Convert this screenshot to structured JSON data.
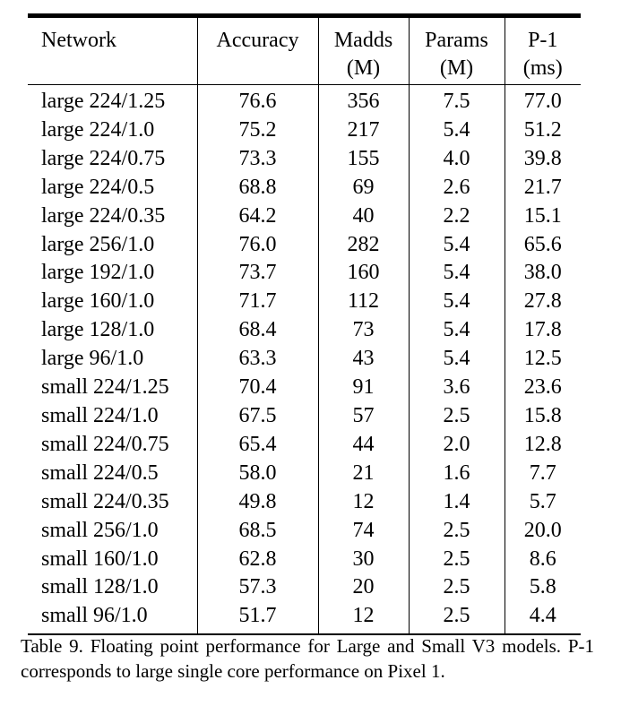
{
  "table": {
    "headers": [
      {
        "line1": "Network",
        "line2": ""
      },
      {
        "line1": "Accuracy",
        "line2": ""
      },
      {
        "line1": "Madds",
        "line2": "(M)"
      },
      {
        "line1": "Params",
        "line2": "(M)"
      },
      {
        "line1": "P-1",
        "line2": "(ms)"
      }
    ],
    "rows": [
      [
        "large 224/1.25",
        "76.6",
        "356",
        "7.5",
        "77.0"
      ],
      [
        "large 224/1.0",
        "75.2",
        "217",
        "5.4",
        "51.2"
      ],
      [
        "large 224/0.75",
        "73.3",
        "155",
        "4.0",
        "39.8"
      ],
      [
        "large 224/0.5",
        "68.8",
        "69",
        "2.6",
        "21.7"
      ],
      [
        "large 224/0.35",
        "64.2",
        "40",
        "2.2",
        "15.1"
      ],
      [
        "large 256/1.0",
        "76.0",
        "282",
        "5.4",
        "65.6"
      ],
      [
        "large 192/1.0",
        "73.7",
        "160",
        "5.4",
        "38.0"
      ],
      [
        "large 160/1.0",
        "71.7",
        "112",
        "5.4",
        "27.8"
      ],
      [
        "large 128/1.0",
        "68.4",
        "73",
        "5.4",
        "17.8"
      ],
      [
        "large 96/1.0",
        "63.3",
        "43",
        "5.4",
        "12.5"
      ],
      [
        "small 224/1.25",
        "70.4",
        "91",
        "3.6",
        "23.6"
      ],
      [
        "small 224/1.0",
        "67.5",
        "57",
        "2.5",
        "15.8"
      ],
      [
        "small 224/0.75",
        "65.4",
        "44",
        "2.0",
        "12.8"
      ],
      [
        "small 224/0.5",
        "58.0",
        "21",
        "1.6",
        "7.7"
      ],
      [
        "small 224/0.35",
        "49.8",
        "12",
        "1.4",
        "5.7"
      ],
      [
        "small 256/1.0",
        "68.5",
        "74",
        "2.5",
        "20.0"
      ],
      [
        "small 160/1.0",
        "62.8",
        "30",
        "2.5",
        "8.6"
      ],
      [
        "small 128/1.0",
        "57.3",
        "20",
        "2.5",
        "5.8"
      ],
      [
        "small 96/1.0",
        "51.7",
        "12",
        "2.5",
        "4.4"
      ]
    ]
  },
  "caption": "Table 9. Floating point performance for Large and Small V3 models. P-1 corresponds to large single core performance on Pixel 1."
}
